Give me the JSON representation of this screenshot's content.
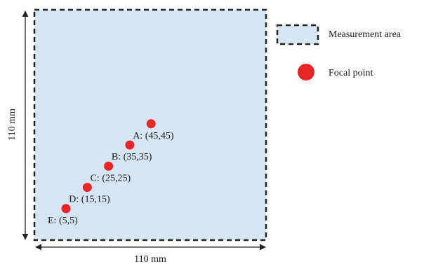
{
  "colors": {
    "area_fill": "#d5e5f3",
    "border": "#222222",
    "focal_point": "#e8262a"
  },
  "legend": {
    "measurement_area": "Measurement area",
    "focal_point": "Focal point"
  },
  "dimensions": {
    "width_label": "110 mm",
    "height_label": "110 mm",
    "size_mm": 110
  },
  "focal_points": [
    {
      "label": "A: (45,45)",
      "x_mm": 45,
      "y_mm": 45
    },
    {
      "label": "B: (35,35)",
      "x_mm": 35,
      "y_mm": 35
    },
    {
      "label": "C: (25,25)",
      "x_mm": 25,
      "y_mm": 25
    },
    {
      "label": "D: (15,15)",
      "x_mm": 15,
      "y_mm": 15
    },
    {
      "label": "E: (5,5)",
      "x_mm": 5,
      "y_mm": 5
    }
  ]
}
